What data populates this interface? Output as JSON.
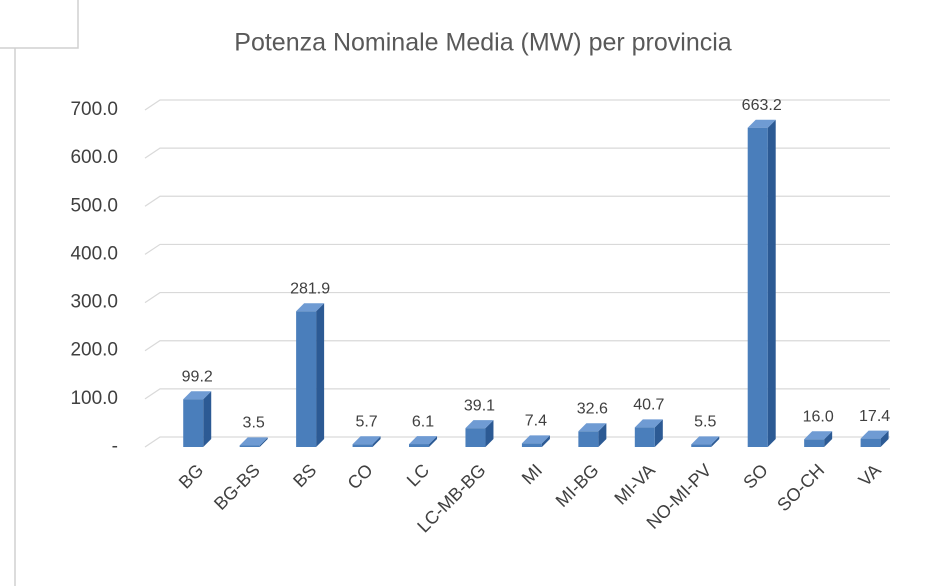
{
  "chart_data": {
    "type": "bar3d",
    "title": "Potenza Nominale Media (MW) per provincia",
    "categories": [
      "BG",
      "BG-BS",
      "BS",
      "CO",
      "LC",
      "LC-MB-BG",
      "MI",
      "MI-BG",
      "MI-VA",
      "NO-MI-PV",
      "SO",
      "SO-CH",
      "VA"
    ],
    "values": [
      99.2,
      3.5,
      281.9,
      5.7,
      6.1,
      39.1,
      7.4,
      32.6,
      40.7,
      5.5,
      663.2,
      16.0,
      17.4
    ],
    "value_labels": [
      "99.2",
      "3.5",
      "281.9",
      "5.7",
      "6.1",
      "39.1",
      "7.4",
      "32.6",
      "40.7",
      "5.5",
      "663.2",
      "16.0",
      "17.4"
    ],
    "color": "#4a7ebb",
    "ylim": [
      0,
      700
    ],
    "yticks": [
      {
        "value": 0,
        "label": "-"
      },
      {
        "value": 100,
        "label": "100.0"
      },
      {
        "value": 200,
        "label": "200.0"
      },
      {
        "value": 300,
        "label": "300.0"
      },
      {
        "value": 400,
        "label": "400.0"
      },
      {
        "value": 500,
        "label": "500.0"
      },
      {
        "value": 600,
        "label": "600.0"
      },
      {
        "value": 700,
        "label": "700.0"
      }
    ],
    "grid": true
  }
}
